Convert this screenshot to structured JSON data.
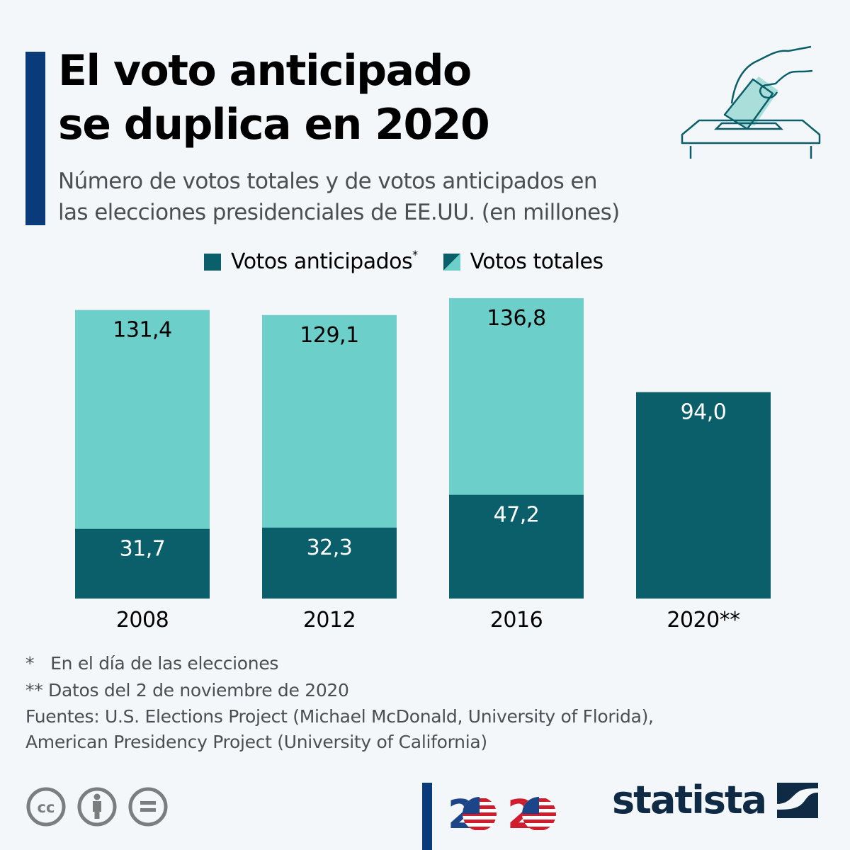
{
  "header": {
    "title_line1": "El voto anticipado",
    "title_line2": "se duplica en 2020",
    "subtitle_line1": "Número de votos totales y de votos anticipados en",
    "subtitle_line2": "las elecciones presidenciales de EE.UU. (en millones)",
    "icon": "ballot-box-icon"
  },
  "colors": {
    "early": "#0a5f6a",
    "total": "#6ccfc9",
    "accent": "#0b3a7a",
    "background": "#f4f7fa"
  },
  "legend": {
    "early_label": "Votos anticipados",
    "early_marker": "*",
    "total_label": "Votos totales"
  },
  "chart_data": {
    "type": "bar",
    "stacked": "overlay",
    "title": "El voto anticipado se duplica en 2020",
    "subtitle": "Número de votos totales y de votos anticipados en las elecciones presidenciales de EE.UU. (en millones)",
    "xlabel": "",
    "ylabel": "",
    "categories": [
      "2008",
      "2012",
      "2016",
      "2020**"
    ],
    "series": [
      {
        "name": "Votos totales",
        "values": [
          131.4,
          129.1,
          136.8,
          null
        ],
        "labels": [
          "131,4",
          "129,1",
          "136,8",
          null
        ]
      },
      {
        "name": "Votos anticipados*",
        "values": [
          31.7,
          32.3,
          47.2,
          94.0
        ],
        "labels": [
          "31,7",
          "32,3",
          "47,2",
          "94,0"
        ]
      }
    ],
    "ylim": [
      0,
      140
    ],
    "grid": false,
    "legend_position": "top"
  },
  "footnotes": {
    "note1_marker": "*",
    "note1_text": "En el día de las elecciones",
    "note2": "** Datos del 2 de noviembre de 2020",
    "sources_line1": "Fuentes: U.S. Elections Project (Michael McDonald, University of Florida),",
    "sources_line2": "American Presidency Project (University of California)"
  },
  "branding": {
    "logo_2020": "2020",
    "statista": "statista",
    "license_icons": [
      "cc-icon",
      "attribution-icon",
      "no-derivatives-icon"
    ]
  }
}
